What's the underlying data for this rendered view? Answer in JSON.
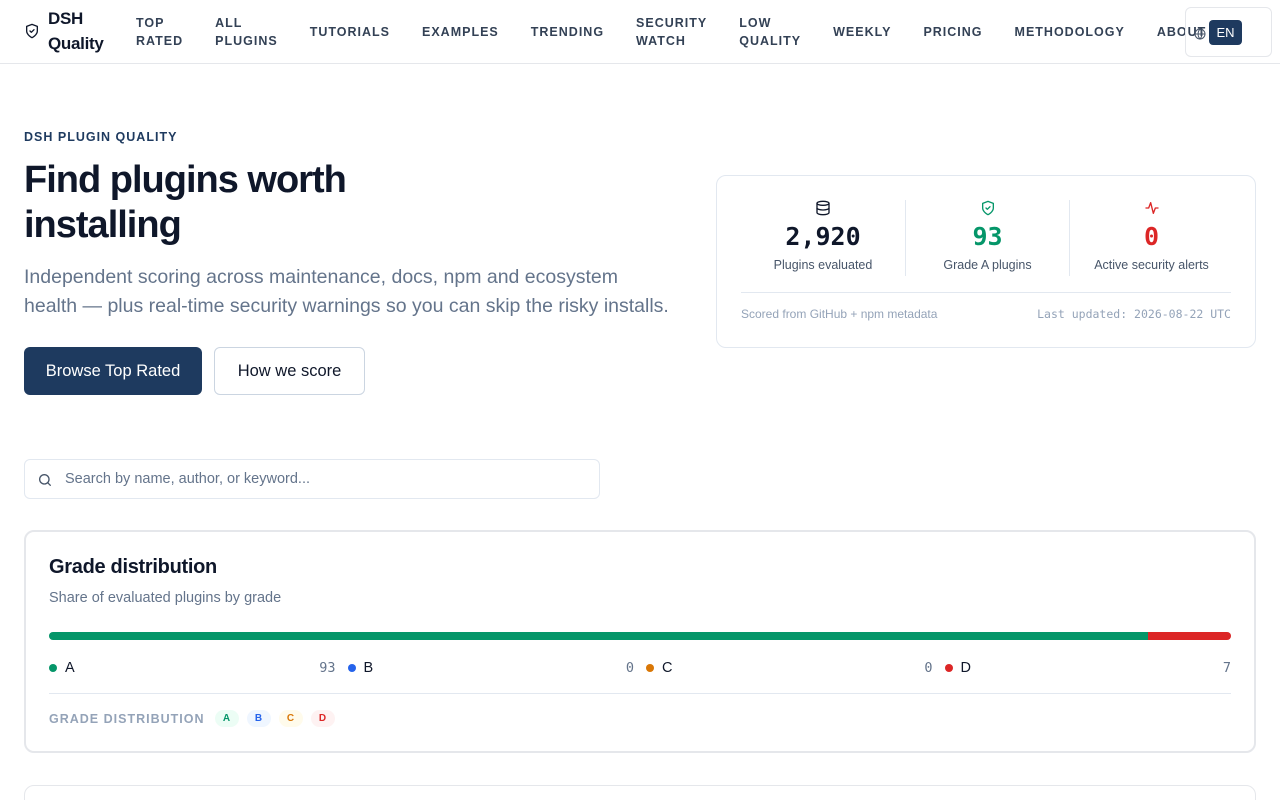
{
  "header": {
    "brand": "DSH Quality",
    "brand_icon": "shield-check-icon",
    "nav": [
      {
        "lines": [
          "TOP",
          "RATED"
        ]
      },
      {
        "lines": [
          "ALL",
          "PLUGINS"
        ]
      },
      {
        "lines": [
          "TUTORIALS"
        ]
      },
      {
        "lines": [
          "EXAMPLES"
        ]
      },
      {
        "lines": [
          "TRENDING"
        ]
      },
      {
        "lines": [
          "SECURITY",
          "WATCH"
        ]
      },
      {
        "lines": [
          "LOW",
          "QUALITY"
        ]
      },
      {
        "lines": [
          "WEEKLY"
        ]
      },
      {
        "lines": [
          "PRICING"
        ]
      },
      {
        "lines": [
          "METHODOLOGY"
        ]
      },
      {
        "lines": [
          "ABOUT"
        ]
      }
    ],
    "language": {
      "icon": "globe-icon",
      "selected": "EN",
      "others": [
        "",
        ""
      ]
    }
  },
  "hero": {
    "eyebrow": "DSH PLUGIN QUALITY",
    "title": "Find plugins worth installing",
    "subtitle": "Independent scoring across maintenance, docs, npm and ecosystem health — plus real-time security warnings so you can skip the risky installs.",
    "primary_cta": "Browse Top Rated",
    "secondary_cta": "How we score"
  },
  "stats": {
    "items": [
      {
        "icon": "database-icon",
        "value": "2,920",
        "label": "Plugins evaluated",
        "color": "#0f172a"
      },
      {
        "icon": "shield-check-icon",
        "value": "93",
        "label": "Grade A plugins",
        "color": "#059669"
      },
      {
        "icon": "activity-icon",
        "value": "0",
        "label": "Active security alerts",
        "color": "#dc2626"
      }
    ],
    "source": "Scored from GitHub + npm metadata",
    "updated": "Last updated: 2026-08-22 UTC"
  },
  "search": {
    "icon": "search-icon",
    "placeholder": "Search by name, author, or keyword...",
    "value": ""
  },
  "grade_distribution": {
    "title": "Grade distribution",
    "subtitle": "Share of evaluated plugins by grade",
    "grades": [
      {
        "name": "A",
        "count": 93,
        "color": "#059669"
      },
      {
        "name": "B",
        "count": 0,
        "color": "#2563eb"
      },
      {
        "name": "C",
        "count": 0,
        "color": "#d97706"
      },
      {
        "name": "D",
        "count": 7,
        "color": "#dc2626"
      }
    ],
    "footer_label": "GRADE DISTRIBUTION",
    "badges": [
      {
        "label": "A",
        "bg": "#ecfdf5",
        "fg": "#059669"
      },
      {
        "label": "B",
        "bg": "#eff6ff",
        "fg": "#2563eb"
      },
      {
        "label": "C",
        "bg": "#fffbeb",
        "fg": "#d97706"
      },
      {
        "label": "D",
        "bg": "#fef2f2",
        "fg": "#dc2626"
      }
    ]
  }
}
